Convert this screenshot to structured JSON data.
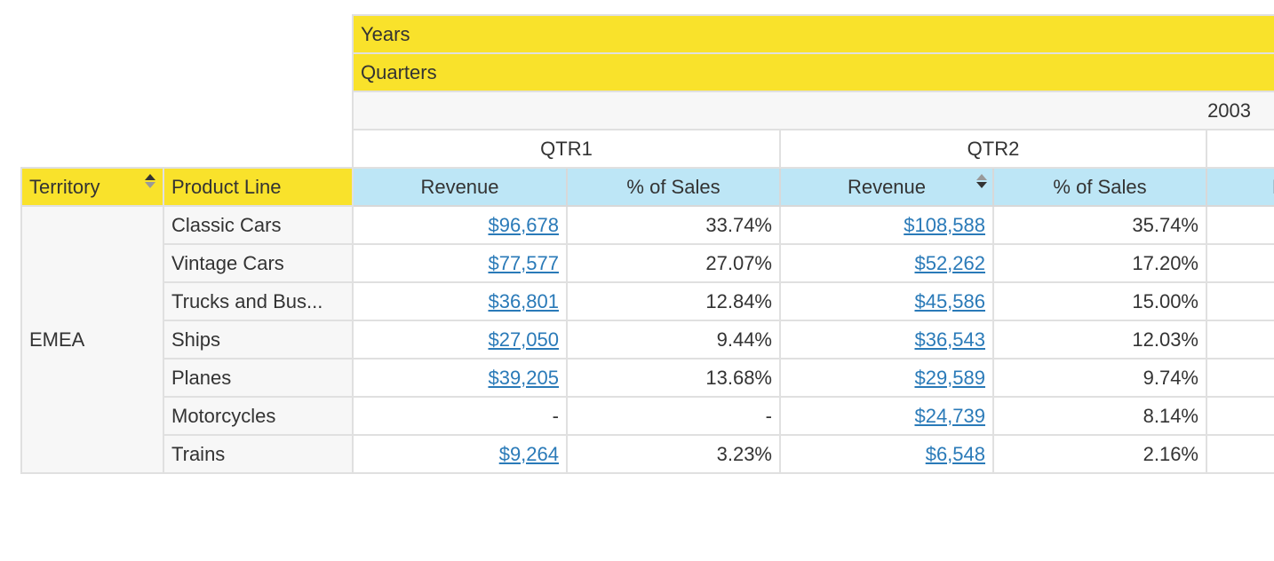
{
  "column_axes": {
    "years_label": "Years",
    "quarters_label": "Quarters"
  },
  "year": "2003",
  "quarters": [
    "QTR1",
    "QTR2"
  ],
  "row_headers": {
    "territory": "Territory",
    "product_line": "Product Line"
  },
  "measures": {
    "revenue": "Revenue",
    "pct": "% of Sales"
  },
  "colors": {
    "header_yellow": "#f9e22b",
    "measure_blue": "#bde6f6",
    "link": "#2a7ab8"
  },
  "territory": "EMEA",
  "rows": [
    {
      "product": "Classic Cars",
      "q1_rev": "$96,678",
      "q1_pct": "33.74%",
      "q2_rev": "$108,588",
      "q2_pct": "35.74%"
    },
    {
      "product": "Vintage Cars",
      "q1_rev": "$77,577",
      "q1_pct": "27.07%",
      "q2_rev": "$52,262",
      "q2_pct": "17.20%"
    },
    {
      "product": "Trucks and Bus...",
      "q1_rev": "$36,801",
      "q1_pct": "12.84%",
      "q2_rev": "$45,586",
      "q2_pct": "15.00%"
    },
    {
      "product": "Ships",
      "q1_rev": "$27,050",
      "q1_pct": "9.44%",
      "q2_rev": "$36,543",
      "q2_pct": "12.03%"
    },
    {
      "product": "Planes",
      "q1_rev": "$39,205",
      "q1_pct": "13.68%",
      "q2_rev": "$29,589",
      "q2_pct": "9.74%"
    },
    {
      "product": "Motorcycles",
      "q1_rev": "-",
      "q1_pct": "-",
      "q2_rev": "$24,739",
      "q2_pct": "8.14%"
    },
    {
      "product": "Trains",
      "q1_rev": "$9,264",
      "q1_pct": "3.23%",
      "q2_rev": "$6,548",
      "q2_pct": "2.16%"
    }
  ]
}
